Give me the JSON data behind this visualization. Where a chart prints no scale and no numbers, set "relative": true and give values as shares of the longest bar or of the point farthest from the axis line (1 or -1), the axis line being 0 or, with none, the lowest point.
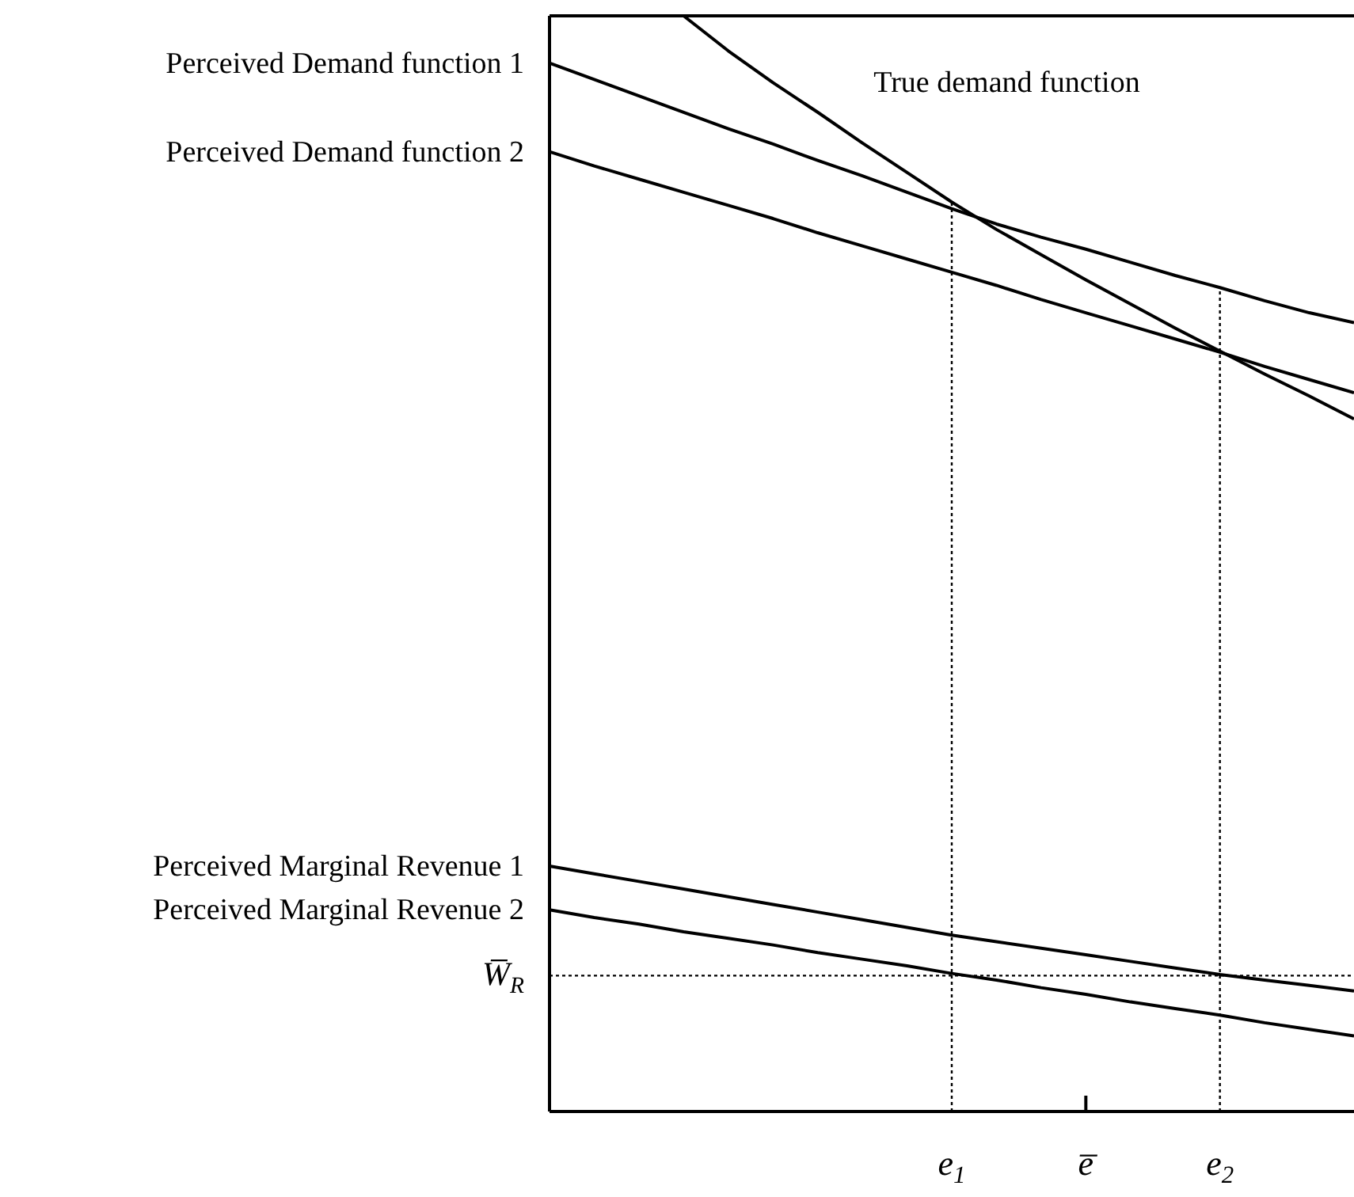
{
  "chart_data": {
    "type": "line",
    "relative": true,
    "line_style": "solid",
    "marker": "none",
    "categories": [
      null,
      null,
      null,
      null,
      null,
      null,
      null,
      null,
      null,
      "e$_{1}$",
      null,
      null,
      "e̅",
      null,
      null,
      "e$_{2}$",
      null,
      null,
      null
    ],
    "series": [
      {
        "name": "Perceived Demand function 1",
        "color": "#000000",
        "values": [
          0.957,
          0.942,
          0.927,
          0.912,
          0.897,
          0.883,
          0.868,
          0.854,
          0.839,
          0.824,
          0.81,
          0.798,
          0.787,
          0.775,
          0.763,
          0.752,
          0.74,
          0.729,
          0.72
        ]
      },
      {
        "name": "Perceived Demand function 2",
        "color": "#000000",
        "values": [
          0.876,
          0.863,
          0.851,
          0.839,
          0.827,
          0.815,
          0.802,
          0.79,
          0.778,
          0.766,
          0.754,
          0.741,
          0.729,
          0.717,
          0.705,
          0.693,
          0.68,
          0.668,
          0.656
        ]
      },
      {
        "name": "True demand function",
        "color": "#000000",
        "values": [
          null,
          null,
          null,
          1.0,
          0.968,
          0.939,
          0.912,
          0.884,
          0.857,
          0.83,
          0.805,
          0.782,
          0.759,
          0.737,
          0.715,
          0.694,
          0.673,
          0.653,
          0.632
        ]
      },
      {
        "name": "Perceived Marginal Revenue 1",
        "color": "#000000",
        "values": [
          0.224,
          0.217,
          0.21,
          0.203,
          0.196,
          0.189,
          0.182,
          0.175,
          0.168,
          0.161,
          0.155,
          0.149,
          0.143,
          0.137,
          0.131,
          0.125,
          0.12,
          0.115,
          0.11
        ]
      },
      {
        "name": "Perceived Marginal Revenue 2",
        "color": "#000000",
        "values": [
          0.184,
          0.177,
          0.171,
          0.164,
          0.158,
          0.152,
          0.145,
          0.139,
          0.133,
          0.126,
          0.12,
          0.113,
          0.107,
          0.1,
          0.094,
          0.088,
          0.081,
          0.075,
          0.069
        ]
      }
    ],
    "ref_lines": [
      {
        "axis": "x",
        "value": "e$_{1}$",
        "line_style": "dotted"
      },
      {
        "axis": "x",
        "value": "e$_{2}$",
        "line_style": "dotted"
      },
      {
        "axis": "y",
        "value": 0.124,
        "label": "W̅$_{R}$",
        "line_style": "dotted"
      }
    ]
  }
}
